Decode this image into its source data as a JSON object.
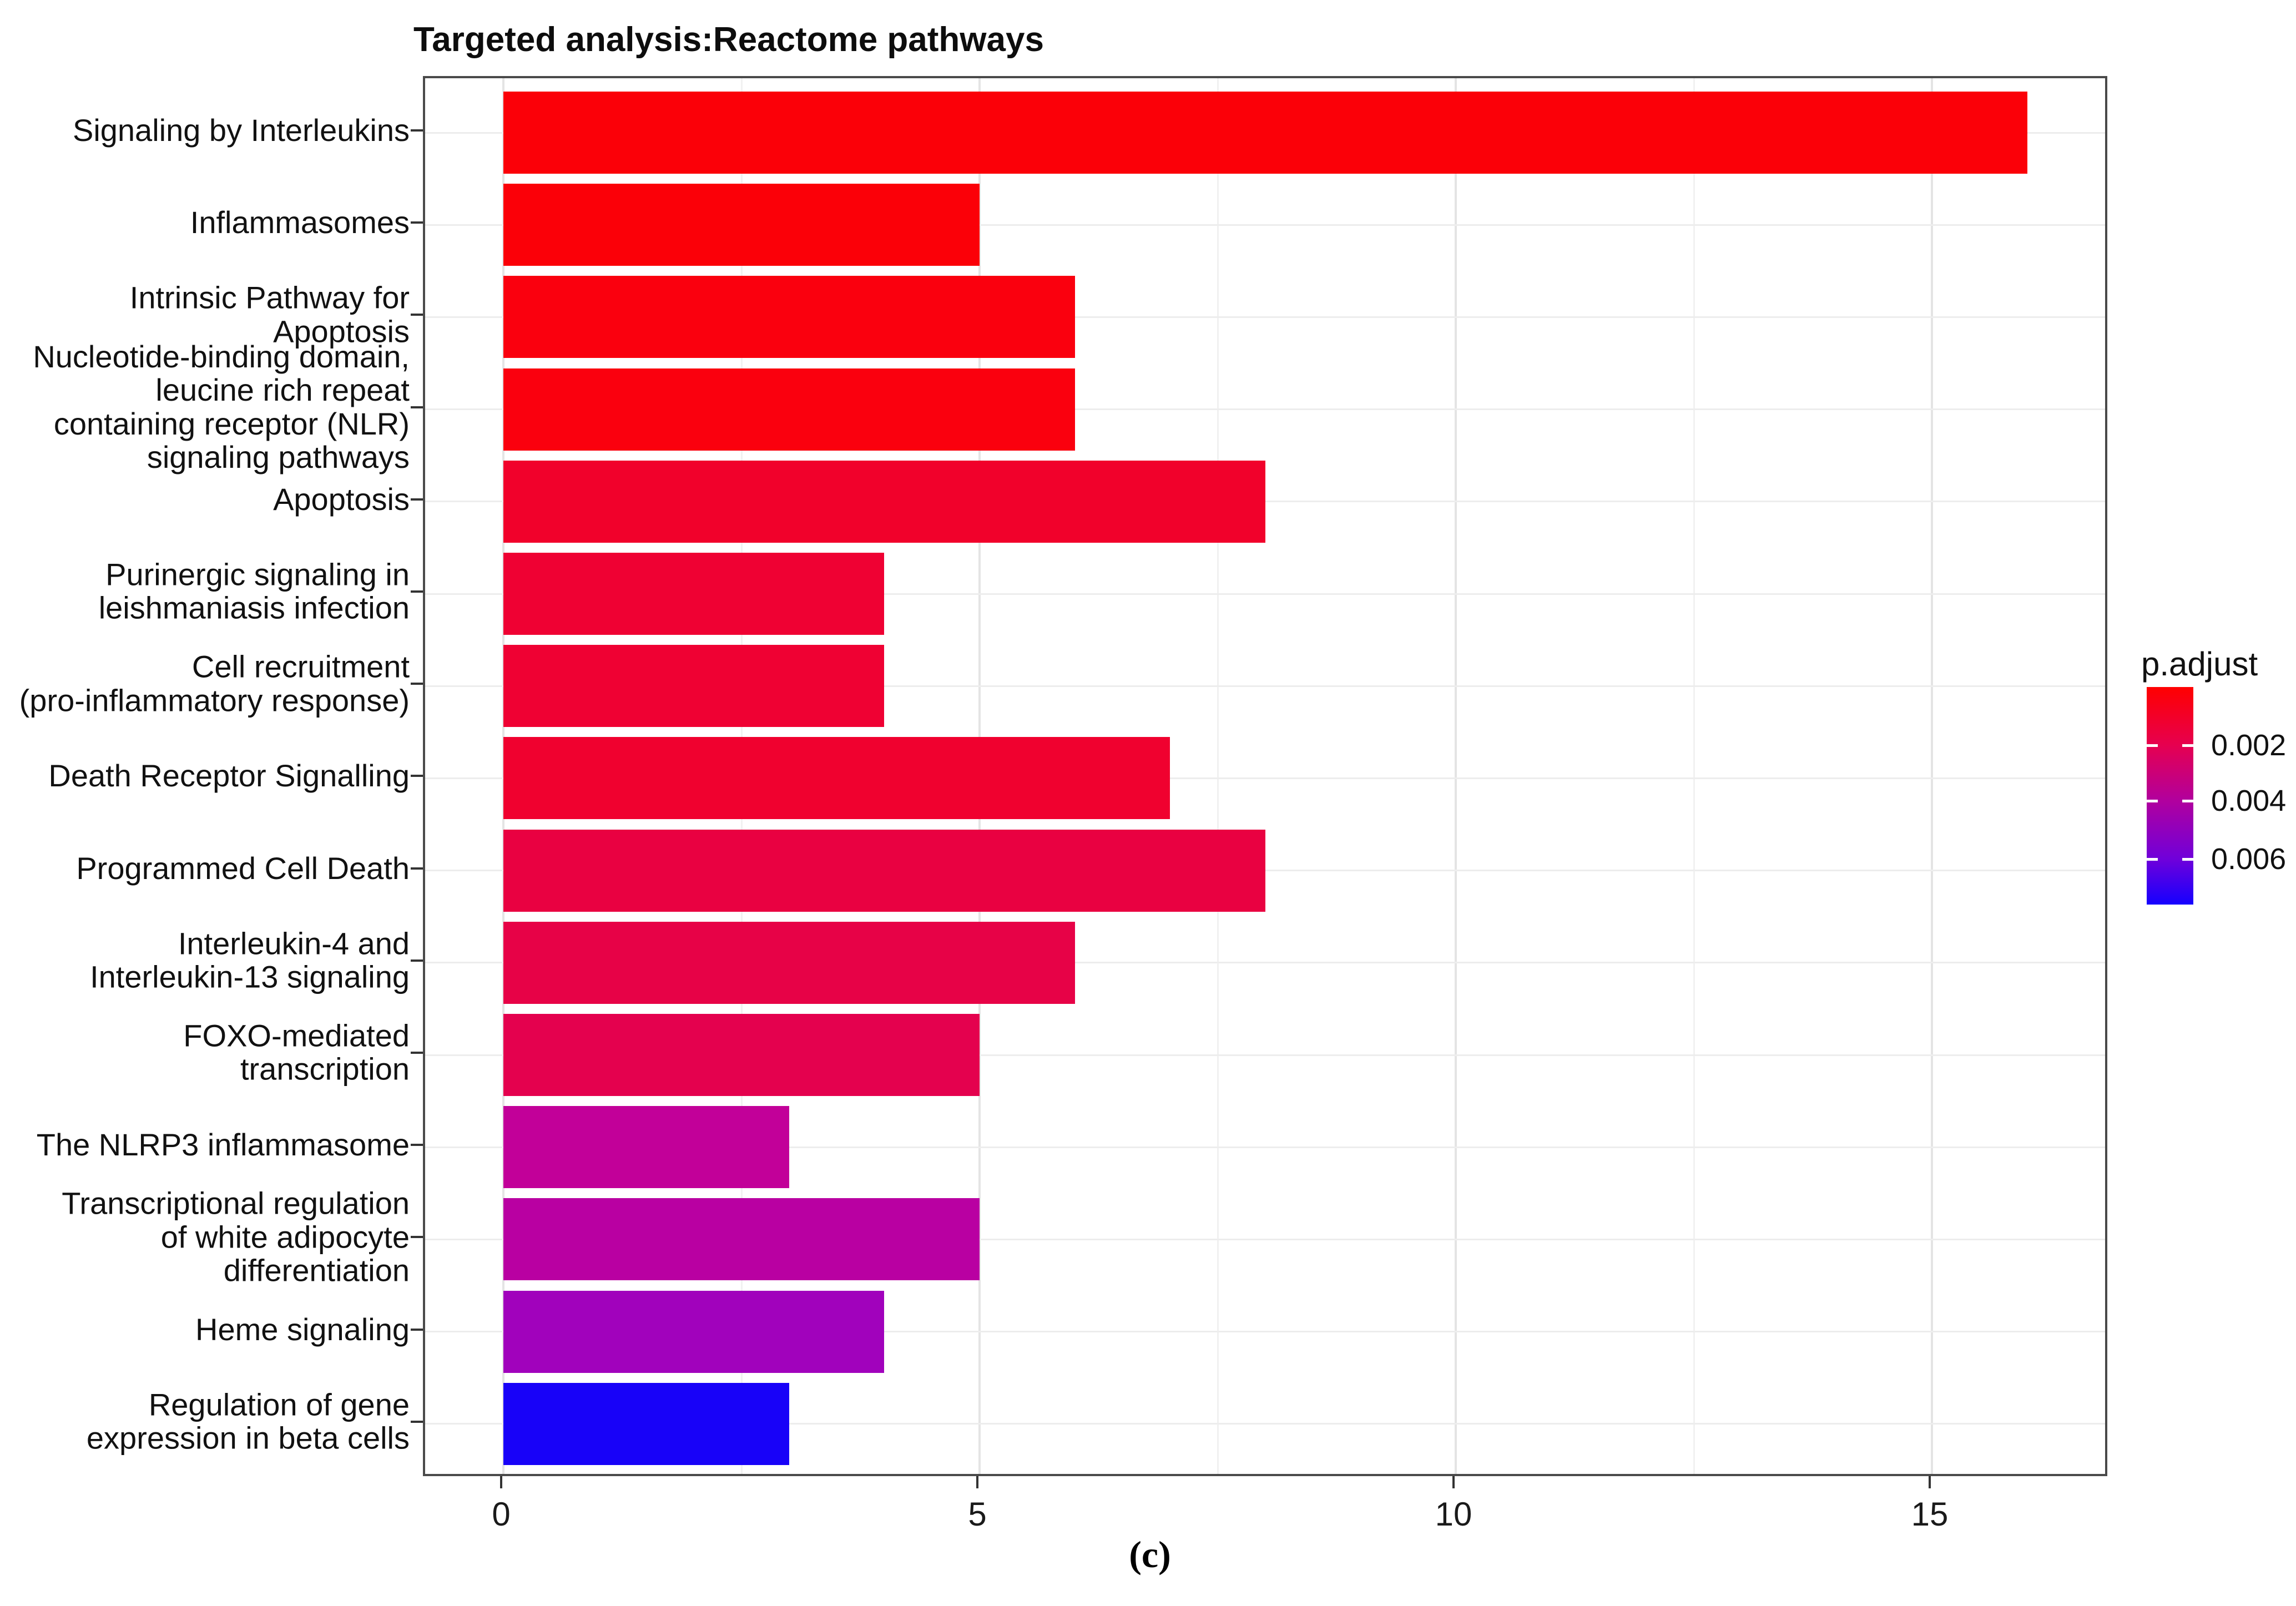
{
  "title": "Targeted analysis:Reactome pathways",
  "caption": "(c)",
  "legend": {
    "title": "p.adjust",
    "tick_labels": [
      "0.002",
      "0.004",
      "0.006"
    ],
    "gradient_top_color": "#ff0000",
    "gradient_bottom_color": "#1500ff"
  },
  "chart_data": {
    "type": "bar",
    "orientation": "horizontal",
    "title": "Targeted analysis:Reactome pathways",
    "xlabel": "",
    "ylabel": "",
    "xlim": [
      0,
      16.9
    ],
    "x_major_ticks": [
      0,
      5,
      10,
      15
    ],
    "x_minor_gridlines": [
      2.5,
      7.5,
      12.5
    ],
    "grid": true,
    "legend_position": "right",
    "color_scale": {
      "title": "p.adjust",
      "ticks": [
        0.002,
        0.004,
        0.006
      ],
      "low_color": "#ff0000",
      "high_color": "#1500ff"
    },
    "categories": [
      "Signaling by Interleukins",
      "Inflammasomes",
      "Intrinsic Pathway for Apoptosis",
      "Nucleotide-binding domain, leucine rich repeat containing receptor (NLR) signaling pathways",
      "Apoptosis",
      "Purinergic signaling in leishmaniasis infection",
      "Cell recruitment (pro-inflammatory response)",
      "Death Receptor Signalling",
      "Programmed Cell Death",
      "Interleukin-4 and Interleukin-13 signaling",
      "FOXO-mediated transcription",
      "The NLRP3 inflammasome",
      "Transcriptional regulation of white adipocyte differentiation",
      "Heme signaling",
      "Regulation of gene expression in beta cells"
    ],
    "label_lines": [
      "Signaling by Interleukins",
      "Inflammasomes",
      "Intrinsic Pathway for\nApoptosis",
      "Nucleotide-binding domain,\nleucine rich repeat\ncontaining receptor (NLR)\nsignaling pathways",
      "Apoptosis",
      "Purinergic signaling in\nleishmaniasis infection",
      "Cell recruitment\n(pro-inflammatory response)",
      "Death Receptor Signalling",
      "Programmed Cell Death",
      "Interleukin-4 and\nInterleukin-13 signaling",
      "FOXO-mediated transcription",
      "The NLRP3 inflammasome",
      "Transcriptional regulation\nof white adipocyte\ndifferentiation",
      "Heme signaling",
      "Regulation of gene\nexpression in beta cells"
    ],
    "values": [
      16,
      5,
      6,
      6,
      8,
      4,
      4,
      7,
      8,
      6,
      5,
      3,
      5,
      4,
      3
    ],
    "bar_colors": [
      "#fb0008",
      "#fb0008",
      "#fa000e",
      "#fa000e",
      "#f1012b",
      "#ef0133",
      "#ef0133",
      "#f0012f",
      "#e90141",
      "#e70247",
      "#e4014e",
      "#c20099",
      "#b900a2",
      "#a102bc",
      "#1802f8"
    ]
  }
}
